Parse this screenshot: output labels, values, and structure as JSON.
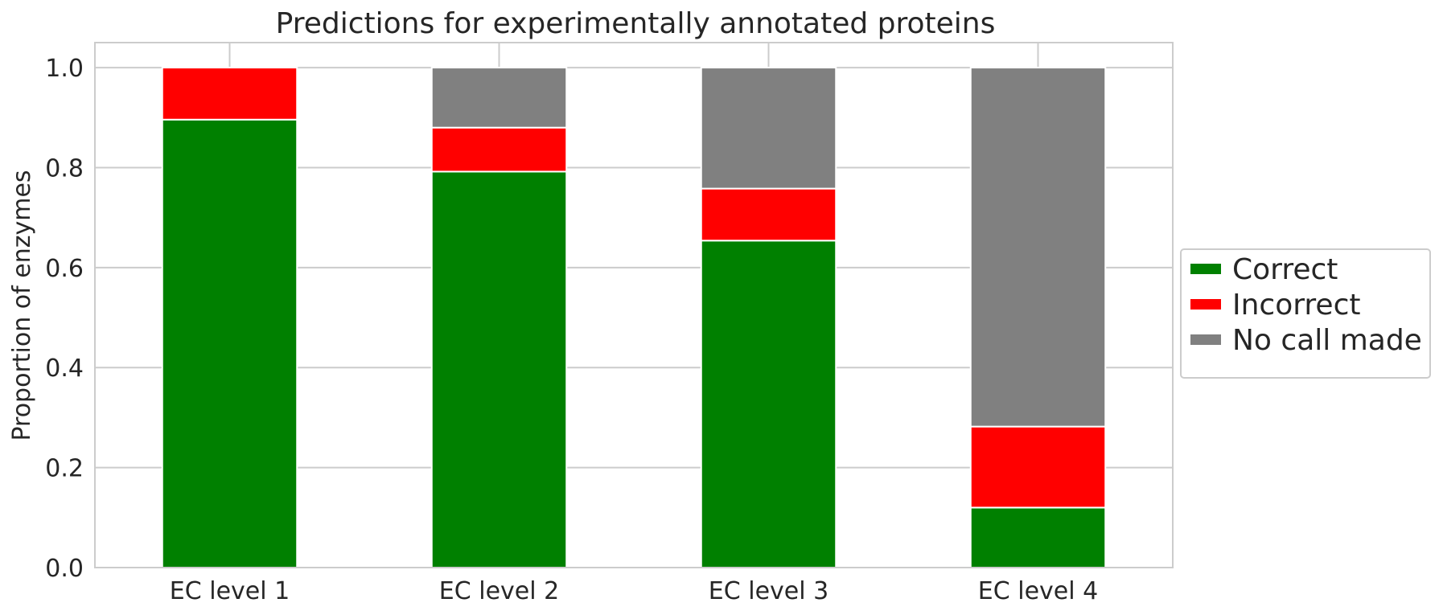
{
  "chart_data": {
    "type": "bar",
    "stacked": true,
    "title": "Predictions for experimentally annotated proteins",
    "xlabel": "",
    "ylabel": "Proportion of enzymes",
    "categories": [
      "EC level 1",
      "EC level 2",
      "EC level 3",
      "EC level 4"
    ],
    "ylim": [
      0,
      1.05
    ],
    "yticks": [
      "0.0",
      "0.2",
      "0.4",
      "0.6",
      "0.8",
      "1.0"
    ],
    "grid": true,
    "legend_position": "right",
    "series": [
      {
        "name": "Correct",
        "color": "#008000",
        "values": [
          0.896,
          0.792,
          0.654,
          0.12
        ]
      },
      {
        "name": "Incorrect",
        "color": "#ff0000",
        "values": [
          0.104,
          0.088,
          0.104,
          0.162
        ]
      },
      {
        "name": "No call made",
        "color": "#808080",
        "values": [
          0.0,
          0.12,
          0.242,
          0.718
        ]
      }
    ]
  }
}
